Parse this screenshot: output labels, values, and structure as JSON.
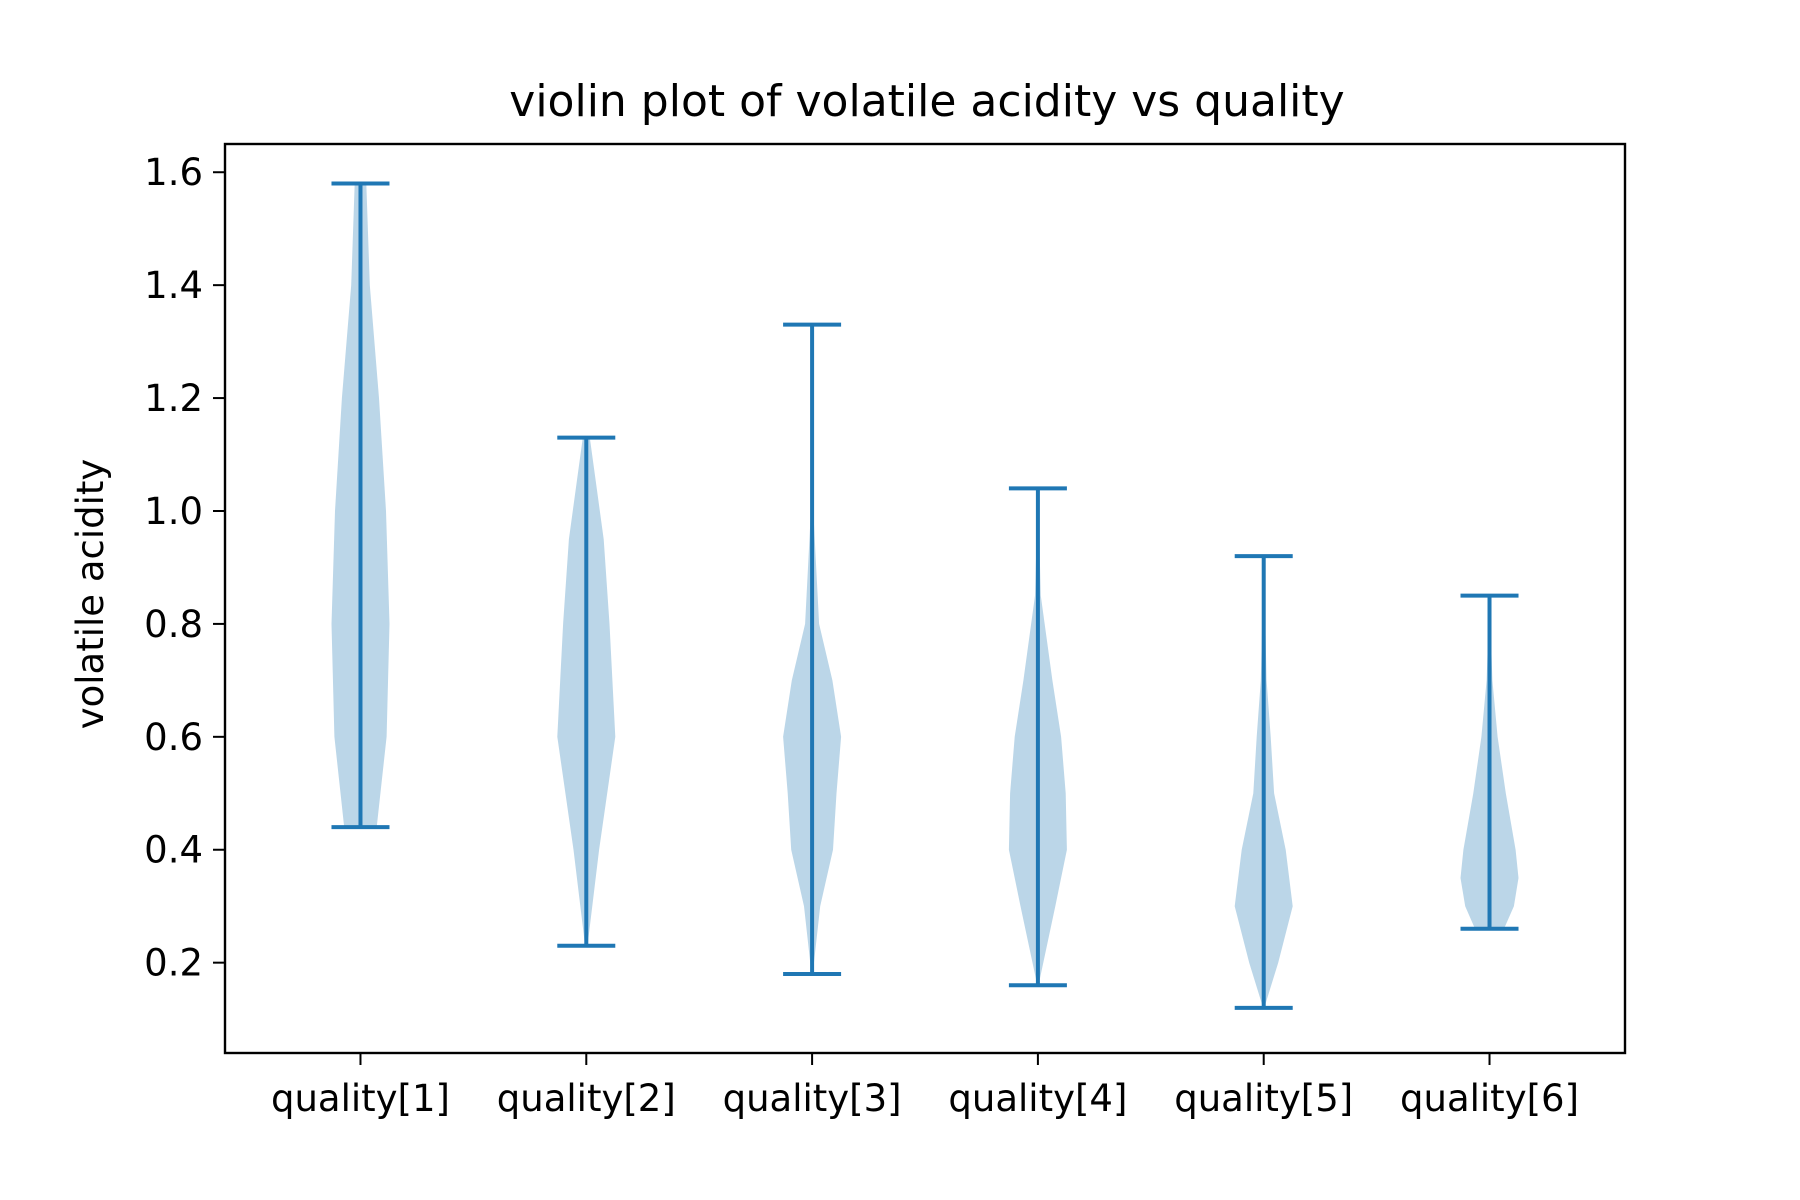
{
  "chart_data": {
    "type": "violin",
    "title": "violin plot of volatile acidity vs quality",
    "xlabel": "",
    "ylabel": "volatile acidity",
    "ylim": [
      0.04,
      1.65
    ],
    "yticks": [
      "0.2",
      "0.4",
      "0.6",
      "0.8",
      "1.0",
      "1.2",
      "1.4",
      "1.6"
    ],
    "grid": false,
    "colors": {
      "line": "#1f77b4",
      "body": "#1f77b4",
      "body_opacity": 0.3
    },
    "series": [
      {
        "category": "quality[1]",
        "min": 0.44,
        "max": 1.58,
        "profile": [
          [
            0.44,
            0.28
          ],
          [
            0.6,
            0.45
          ],
          [
            0.8,
            0.5
          ],
          [
            1.0,
            0.44
          ],
          [
            1.2,
            0.32
          ],
          [
            1.4,
            0.16
          ],
          [
            1.58,
            0.1
          ]
        ]
      },
      {
        "category": "quality[2]",
        "min": 0.23,
        "max": 1.13,
        "profile": [
          [
            0.23,
            0.02
          ],
          [
            0.4,
            0.22
          ],
          [
            0.6,
            0.5
          ],
          [
            0.8,
            0.4
          ],
          [
            0.95,
            0.3
          ],
          [
            1.13,
            0.06
          ]
        ]
      },
      {
        "category": "quality[3]",
        "min": 0.18,
        "max": 1.33,
        "profile": [
          [
            0.18,
            0.01
          ],
          [
            0.3,
            0.14
          ],
          [
            0.4,
            0.36
          ],
          [
            0.5,
            0.42
          ],
          [
            0.6,
            0.5
          ],
          [
            0.7,
            0.35
          ],
          [
            0.8,
            0.12
          ],
          [
            1.0,
            0.02
          ],
          [
            1.33,
            0.0
          ]
        ]
      },
      {
        "category": "quality[4]",
        "min": 0.16,
        "max": 1.04,
        "profile": [
          [
            0.16,
            0.01
          ],
          [
            0.3,
            0.3
          ],
          [
            0.4,
            0.5
          ],
          [
            0.5,
            0.48
          ],
          [
            0.6,
            0.4
          ],
          [
            0.7,
            0.25
          ],
          [
            0.85,
            0.05
          ],
          [
            1.04,
            0.0
          ]
        ]
      },
      {
        "category": "quality[5]",
        "min": 0.12,
        "max": 0.92,
        "profile": [
          [
            0.12,
            0.01
          ],
          [
            0.2,
            0.25
          ],
          [
            0.3,
            0.5
          ],
          [
            0.4,
            0.38
          ],
          [
            0.5,
            0.18
          ],
          [
            0.6,
            0.12
          ],
          [
            0.7,
            0.05
          ],
          [
            0.92,
            0.0
          ]
        ]
      },
      {
        "category": "quality[6]",
        "min": 0.26,
        "max": 0.85,
        "profile": [
          [
            0.26,
            0.25
          ],
          [
            0.3,
            0.42
          ],
          [
            0.35,
            0.5
          ],
          [
            0.4,
            0.45
          ],
          [
            0.5,
            0.28
          ],
          [
            0.6,
            0.14
          ],
          [
            0.7,
            0.05
          ],
          [
            0.85,
            0.0
          ]
        ]
      }
    ]
  }
}
